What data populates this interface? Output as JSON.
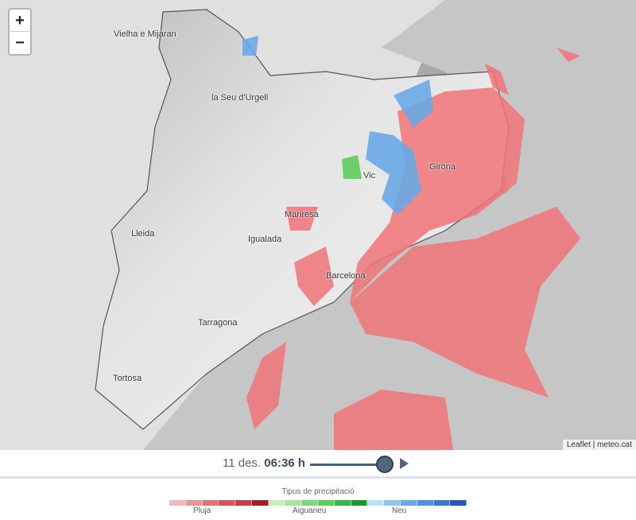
{
  "map": {
    "zoom_in": "+",
    "zoom_out": "−",
    "cities": [
      {
        "name": "Vielha e Mijaran"
      },
      {
        "name": "la Seu d'Urgell"
      },
      {
        "name": "Vic"
      },
      {
        "name": "Girona"
      },
      {
        "name": "Manresa"
      },
      {
        "name": "Lleida"
      },
      {
        "name": "Igualada"
      },
      {
        "name": "Barcelona"
      },
      {
        "name": "Tarragona"
      },
      {
        "name": "Tortosa"
      }
    ],
    "attribution": {
      "leaflet": "Leaflet",
      "separator": "|",
      "source": "meteo.cat"
    }
  },
  "timeline": {
    "date": "11 des.",
    "time": "06:36 h",
    "progress": 0.95,
    "play_icon": "play-icon"
  },
  "legend": {
    "title": "Tipus de precipitació",
    "groups": [
      {
        "label": "Pluja",
        "colors": [
          "#f2b7bb",
          "#e9969b",
          "#dd7379",
          "#d6565d",
          "#c83d44",
          "#9e1f26"
        ]
      },
      {
        "label": "Aiguaneu",
        "colors": [
          "#c4f0b4",
          "#a6e69a",
          "#7dd875",
          "#5fcb5c",
          "#3bb54a",
          "#1a9a2c"
        ]
      },
      {
        "label": "Neu",
        "colors": [
          "#b4e4f5",
          "#91c7ee",
          "#6aa9e6",
          "#4e90dd",
          "#3877cf",
          "#2458b8"
        ]
      }
    ]
  },
  "colors": {
    "rain": "#f07478",
    "snow": "#6aa9e6",
    "sleet": "#5fcb5c"
  }
}
